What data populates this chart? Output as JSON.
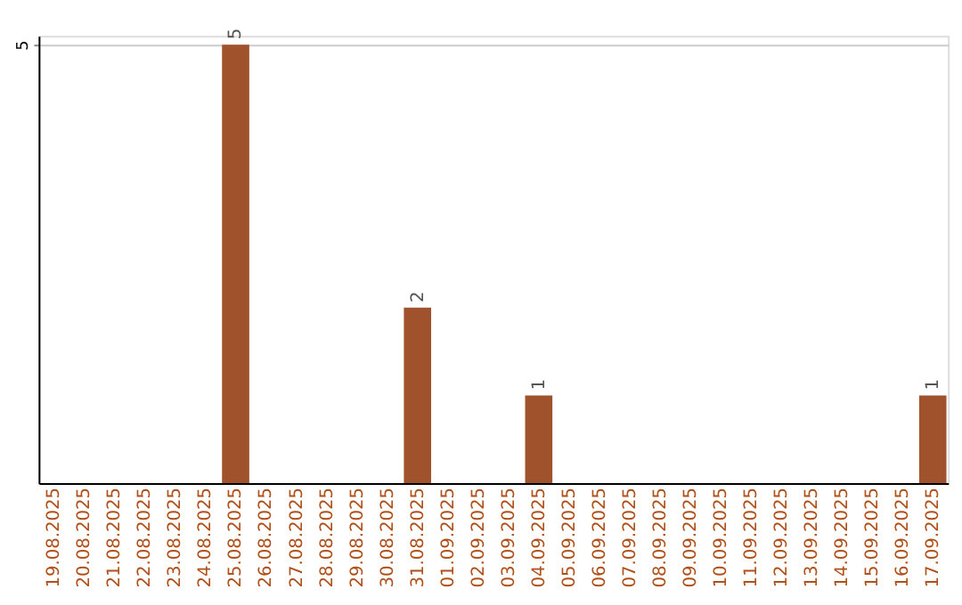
{
  "chart_data": {
    "type": "bar",
    "categories": [
      "19.08.2025",
      "20.08.2025",
      "21.08.2025",
      "22.08.2025",
      "23.08.2025",
      "24.08.2025",
      "25.08.2025",
      "26.08.2025",
      "27.08.2025",
      "28.08.2025",
      "29.08.2025",
      "30.08.2025",
      "31.08.2025",
      "01.09.2025",
      "02.09.2025",
      "03.09.2025",
      "04.09.2025",
      "05.09.2025",
      "06.09.2025",
      "07.09.2025",
      "08.09.2025",
      "09.09.2025",
      "10.09.2025",
      "11.09.2025",
      "12.09.2025",
      "13.09.2025",
      "14.09.2025",
      "15.09.2025",
      "16.09.2025",
      "17.09.2025"
    ],
    "values": [
      0,
      0,
      0,
      0,
      0,
      0,
      5,
      0,
      0,
      0,
      0,
      0,
      2,
      0,
      0,
      0,
      1,
      0,
      0,
      0,
      0,
      0,
      0,
      0,
      0,
      0,
      0,
      0,
      0,
      1
    ],
    "value_labels": [
      null,
      null,
      null,
      null,
      null,
      null,
      "5",
      null,
      null,
      null,
      null,
      null,
      "2",
      null,
      null,
      null,
      "1",
      null,
      null,
      null,
      null,
      null,
      null,
      null,
      null,
      null,
      null,
      null,
      null,
      "1"
    ],
    "color": "#a0522d",
    "ylim": [
      0,
      5.1
    ],
    "yticks": [
      5
    ],
    "grid": "y"
  }
}
